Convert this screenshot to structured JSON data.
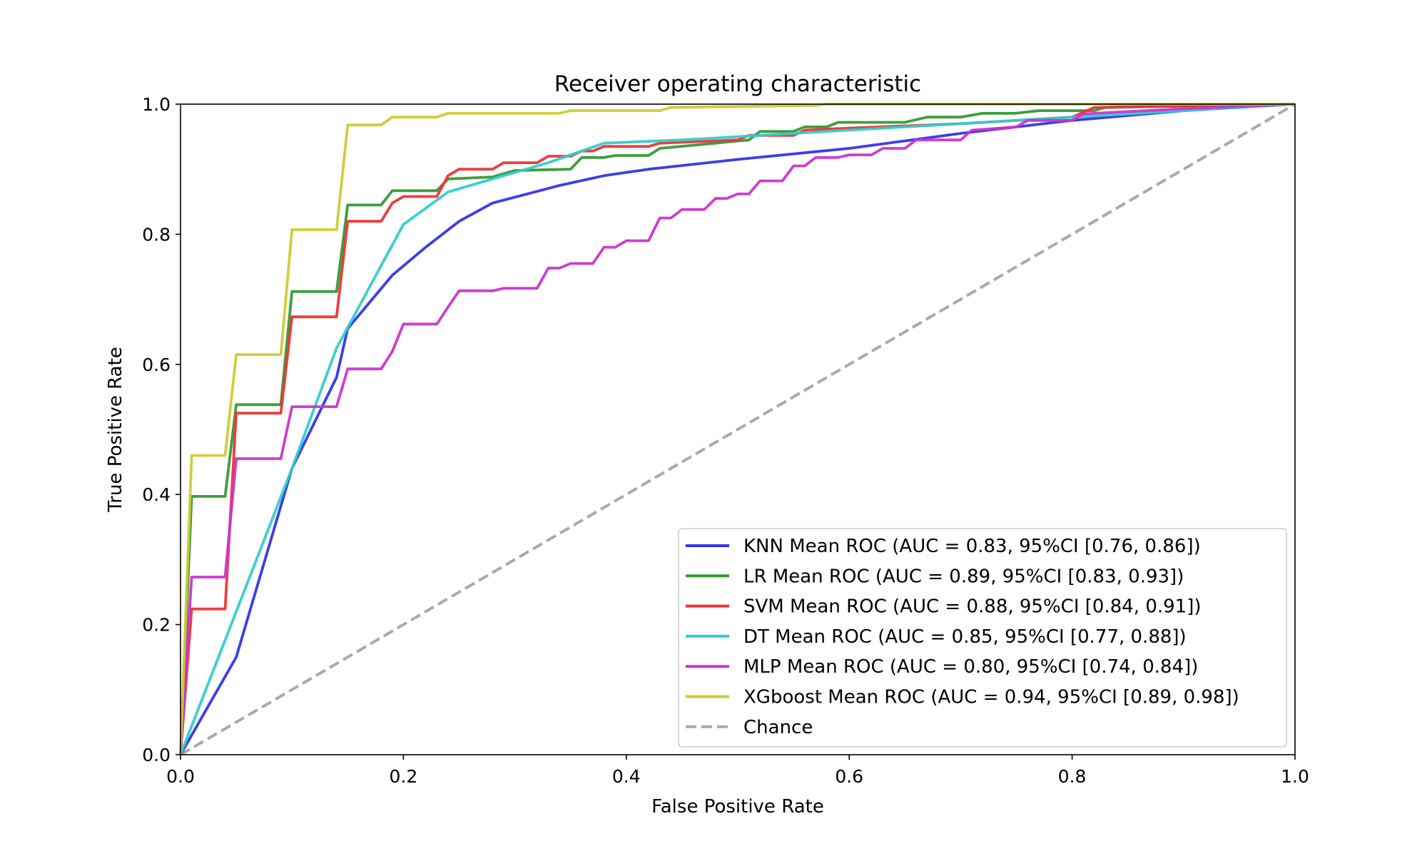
{
  "chart_data": {
    "type": "line",
    "title": "Receiver operating characteristic",
    "xlabel": "False Positive Rate",
    "ylabel": "True Positive Rate",
    "xlim": [
      0.0,
      1.0
    ],
    "ylim": [
      0.0,
      1.0
    ],
    "xticks": [
      "0.0",
      "0.2",
      "0.4",
      "0.6",
      "0.8",
      "1.0"
    ],
    "yticks": [
      "0.0",
      "0.2",
      "0.4",
      "0.6",
      "0.8",
      "1.0"
    ],
    "grid": false,
    "legend_position": "lower-right",
    "series": [
      {
        "name": "KNN Mean ROC (AUC = 0.83, 95%CI [0.76, 0.86])",
        "color": "#3333ee",
        "points": [
          [
            0,
            0
          ],
          [
            0.05,
            0.15
          ],
          [
            0.1,
            0.44
          ],
          [
            0.14,
            0.58
          ],
          [
            0.15,
            0.655
          ],
          [
            0.19,
            0.737
          ],
          [
            0.22,
            0.78
          ],
          [
            0.25,
            0.82
          ],
          [
            0.28,
            0.848
          ],
          [
            0.34,
            0.875
          ],
          [
            0.38,
            0.89
          ],
          [
            0.42,
            0.9
          ],
          [
            0.5,
            0.915
          ],
          [
            0.6,
            0.932
          ],
          [
            0.7,
            0.955
          ],
          [
            0.8,
            0.975
          ],
          [
            0.9,
            0.99
          ],
          [
            1.0,
            1.0
          ]
        ]
      },
      {
        "name": "LR Mean ROC (AUC = 0.89, 95%CI [0.83, 0.93])",
        "color": "#339933",
        "points": [
          [
            0,
            0
          ],
          [
            0.01,
            0.397
          ],
          [
            0.04,
            0.397
          ],
          [
            0.05,
            0.538
          ],
          [
            0.09,
            0.538
          ],
          [
            0.1,
            0.712
          ],
          [
            0.14,
            0.712
          ],
          [
            0.15,
            0.845
          ],
          [
            0.18,
            0.845
          ],
          [
            0.19,
            0.867
          ],
          [
            0.23,
            0.867
          ],
          [
            0.24,
            0.885
          ],
          [
            0.28,
            0.888
          ],
          [
            0.3,
            0.898
          ],
          [
            0.35,
            0.9
          ],
          [
            0.36,
            0.918
          ],
          [
            0.38,
            0.918
          ],
          [
            0.39,
            0.921
          ],
          [
            0.42,
            0.921
          ],
          [
            0.43,
            0.932
          ],
          [
            0.51,
            0.945
          ],
          [
            0.52,
            0.958
          ],
          [
            0.55,
            0.958
          ],
          [
            0.56,
            0.965
          ],
          [
            0.58,
            0.965
          ],
          [
            0.59,
            0.972
          ],
          [
            0.65,
            0.972
          ],
          [
            0.67,
            0.98
          ],
          [
            0.7,
            0.98
          ],
          [
            0.72,
            0.986
          ],
          [
            0.75,
            0.986
          ],
          [
            0.77,
            0.99
          ],
          [
            0.82,
            0.99
          ],
          [
            0.83,
            0.995
          ],
          [
            0.9,
            0.997
          ],
          [
            1.0,
            1.0
          ]
        ]
      },
      {
        "name": "SVM Mean ROC (AUC = 0.88, 95%CI [0.84, 0.91])",
        "color": "#ee3333",
        "points": [
          [
            0,
            0
          ],
          [
            0.01,
            0.224
          ],
          [
            0.04,
            0.224
          ],
          [
            0.05,
            0.525
          ],
          [
            0.09,
            0.525
          ],
          [
            0.1,
            0.673
          ],
          [
            0.14,
            0.673
          ],
          [
            0.15,
            0.82
          ],
          [
            0.18,
            0.82
          ],
          [
            0.19,
            0.848
          ],
          [
            0.2,
            0.858
          ],
          [
            0.23,
            0.858
          ],
          [
            0.24,
            0.89
          ],
          [
            0.25,
            0.9
          ],
          [
            0.28,
            0.9
          ],
          [
            0.29,
            0.91
          ],
          [
            0.32,
            0.91
          ],
          [
            0.33,
            0.92
          ],
          [
            0.35,
            0.92
          ],
          [
            0.36,
            0.928
          ],
          [
            0.37,
            0.928
          ],
          [
            0.38,
            0.935
          ],
          [
            0.42,
            0.935
          ],
          [
            0.43,
            0.94
          ],
          [
            0.5,
            0.945
          ],
          [
            0.51,
            0.952
          ],
          [
            0.55,
            0.952
          ],
          [
            0.56,
            0.96
          ],
          [
            0.6,
            0.963
          ],
          [
            0.7,
            0.97
          ],
          [
            0.8,
            0.98
          ],
          [
            0.82,
            0.995
          ],
          [
            1.0,
            1.0
          ]
        ]
      },
      {
        "name": "DT Mean ROC (AUC = 0.85, 95%CI [0.77, 0.88])",
        "color": "#33cccc",
        "points": [
          [
            0,
            0
          ],
          [
            0.1,
            0.44
          ],
          [
            0.14,
            0.625
          ],
          [
            0.17,
            0.72
          ],
          [
            0.2,
            0.815
          ],
          [
            0.24,
            0.865
          ],
          [
            0.29,
            0.89
          ],
          [
            0.33,
            0.91
          ],
          [
            0.38,
            0.94
          ],
          [
            0.45,
            0.945
          ],
          [
            0.55,
            0.955
          ],
          [
            0.65,
            0.965
          ],
          [
            0.75,
            0.975
          ],
          [
            0.85,
            0.985
          ],
          [
            1.0,
            1.0
          ]
        ]
      },
      {
        "name": "MLP Mean ROC (AUC = 0.80, 95%CI [0.74, 0.84])",
        "color": "#cc33cc",
        "points": [
          [
            0,
            0
          ],
          [
            0.01,
            0.273
          ],
          [
            0.04,
            0.273
          ],
          [
            0.05,
            0.455
          ],
          [
            0.09,
            0.455
          ],
          [
            0.1,
            0.535
          ],
          [
            0.14,
            0.535
          ],
          [
            0.15,
            0.593
          ],
          [
            0.18,
            0.593
          ],
          [
            0.19,
            0.62
          ],
          [
            0.2,
            0.662
          ],
          [
            0.23,
            0.662
          ],
          [
            0.24,
            0.688
          ],
          [
            0.25,
            0.713
          ],
          [
            0.28,
            0.713
          ],
          [
            0.29,
            0.717
          ],
          [
            0.32,
            0.717
          ],
          [
            0.33,
            0.748
          ],
          [
            0.34,
            0.748
          ],
          [
            0.35,
            0.755
          ],
          [
            0.37,
            0.755
          ],
          [
            0.38,
            0.78
          ],
          [
            0.39,
            0.78
          ],
          [
            0.4,
            0.79
          ],
          [
            0.42,
            0.79
          ],
          [
            0.43,
            0.825
          ],
          [
            0.44,
            0.825
          ],
          [
            0.45,
            0.838
          ],
          [
            0.47,
            0.838
          ],
          [
            0.48,
            0.855
          ],
          [
            0.49,
            0.855
          ],
          [
            0.5,
            0.862
          ],
          [
            0.51,
            0.862
          ],
          [
            0.52,
            0.882
          ],
          [
            0.54,
            0.882
          ],
          [
            0.55,
            0.905
          ],
          [
            0.56,
            0.905
          ],
          [
            0.57,
            0.918
          ],
          [
            0.59,
            0.918
          ],
          [
            0.6,
            0.922
          ],
          [
            0.62,
            0.922
          ],
          [
            0.63,
            0.932
          ],
          [
            0.65,
            0.932
          ],
          [
            0.66,
            0.945
          ],
          [
            0.7,
            0.945
          ],
          [
            0.71,
            0.96
          ],
          [
            0.75,
            0.965
          ],
          [
            0.76,
            0.975
          ],
          [
            0.8,
            0.975
          ],
          [
            0.81,
            0.985
          ],
          [
            0.9,
            0.993
          ],
          [
            1.0,
            1.0
          ]
        ]
      },
      {
        "name": "XGboost Mean ROC (AUC = 0.94, 95%CI [0.89, 0.98])",
        "color": "#cccc33",
        "points": [
          [
            0,
            0
          ],
          [
            0.01,
            0.46
          ],
          [
            0.04,
            0.46
          ],
          [
            0.05,
            0.615
          ],
          [
            0.09,
            0.615
          ],
          [
            0.1,
            0.807
          ],
          [
            0.14,
            0.807
          ],
          [
            0.15,
            0.968
          ],
          [
            0.18,
            0.968
          ],
          [
            0.19,
            0.98
          ],
          [
            0.23,
            0.98
          ],
          [
            0.24,
            0.986
          ],
          [
            0.34,
            0.986
          ],
          [
            0.35,
            0.99
          ],
          [
            0.43,
            0.99
          ],
          [
            0.44,
            0.995
          ],
          [
            0.57,
            0.998
          ],
          [
            0.58,
            1.0
          ],
          [
            1.0,
            1.0
          ]
        ]
      },
      {
        "name": "Chance",
        "color": "#aaaaaa",
        "dashed": true,
        "points": [
          [
            0,
            0
          ],
          [
            1,
            1
          ]
        ]
      }
    ]
  }
}
